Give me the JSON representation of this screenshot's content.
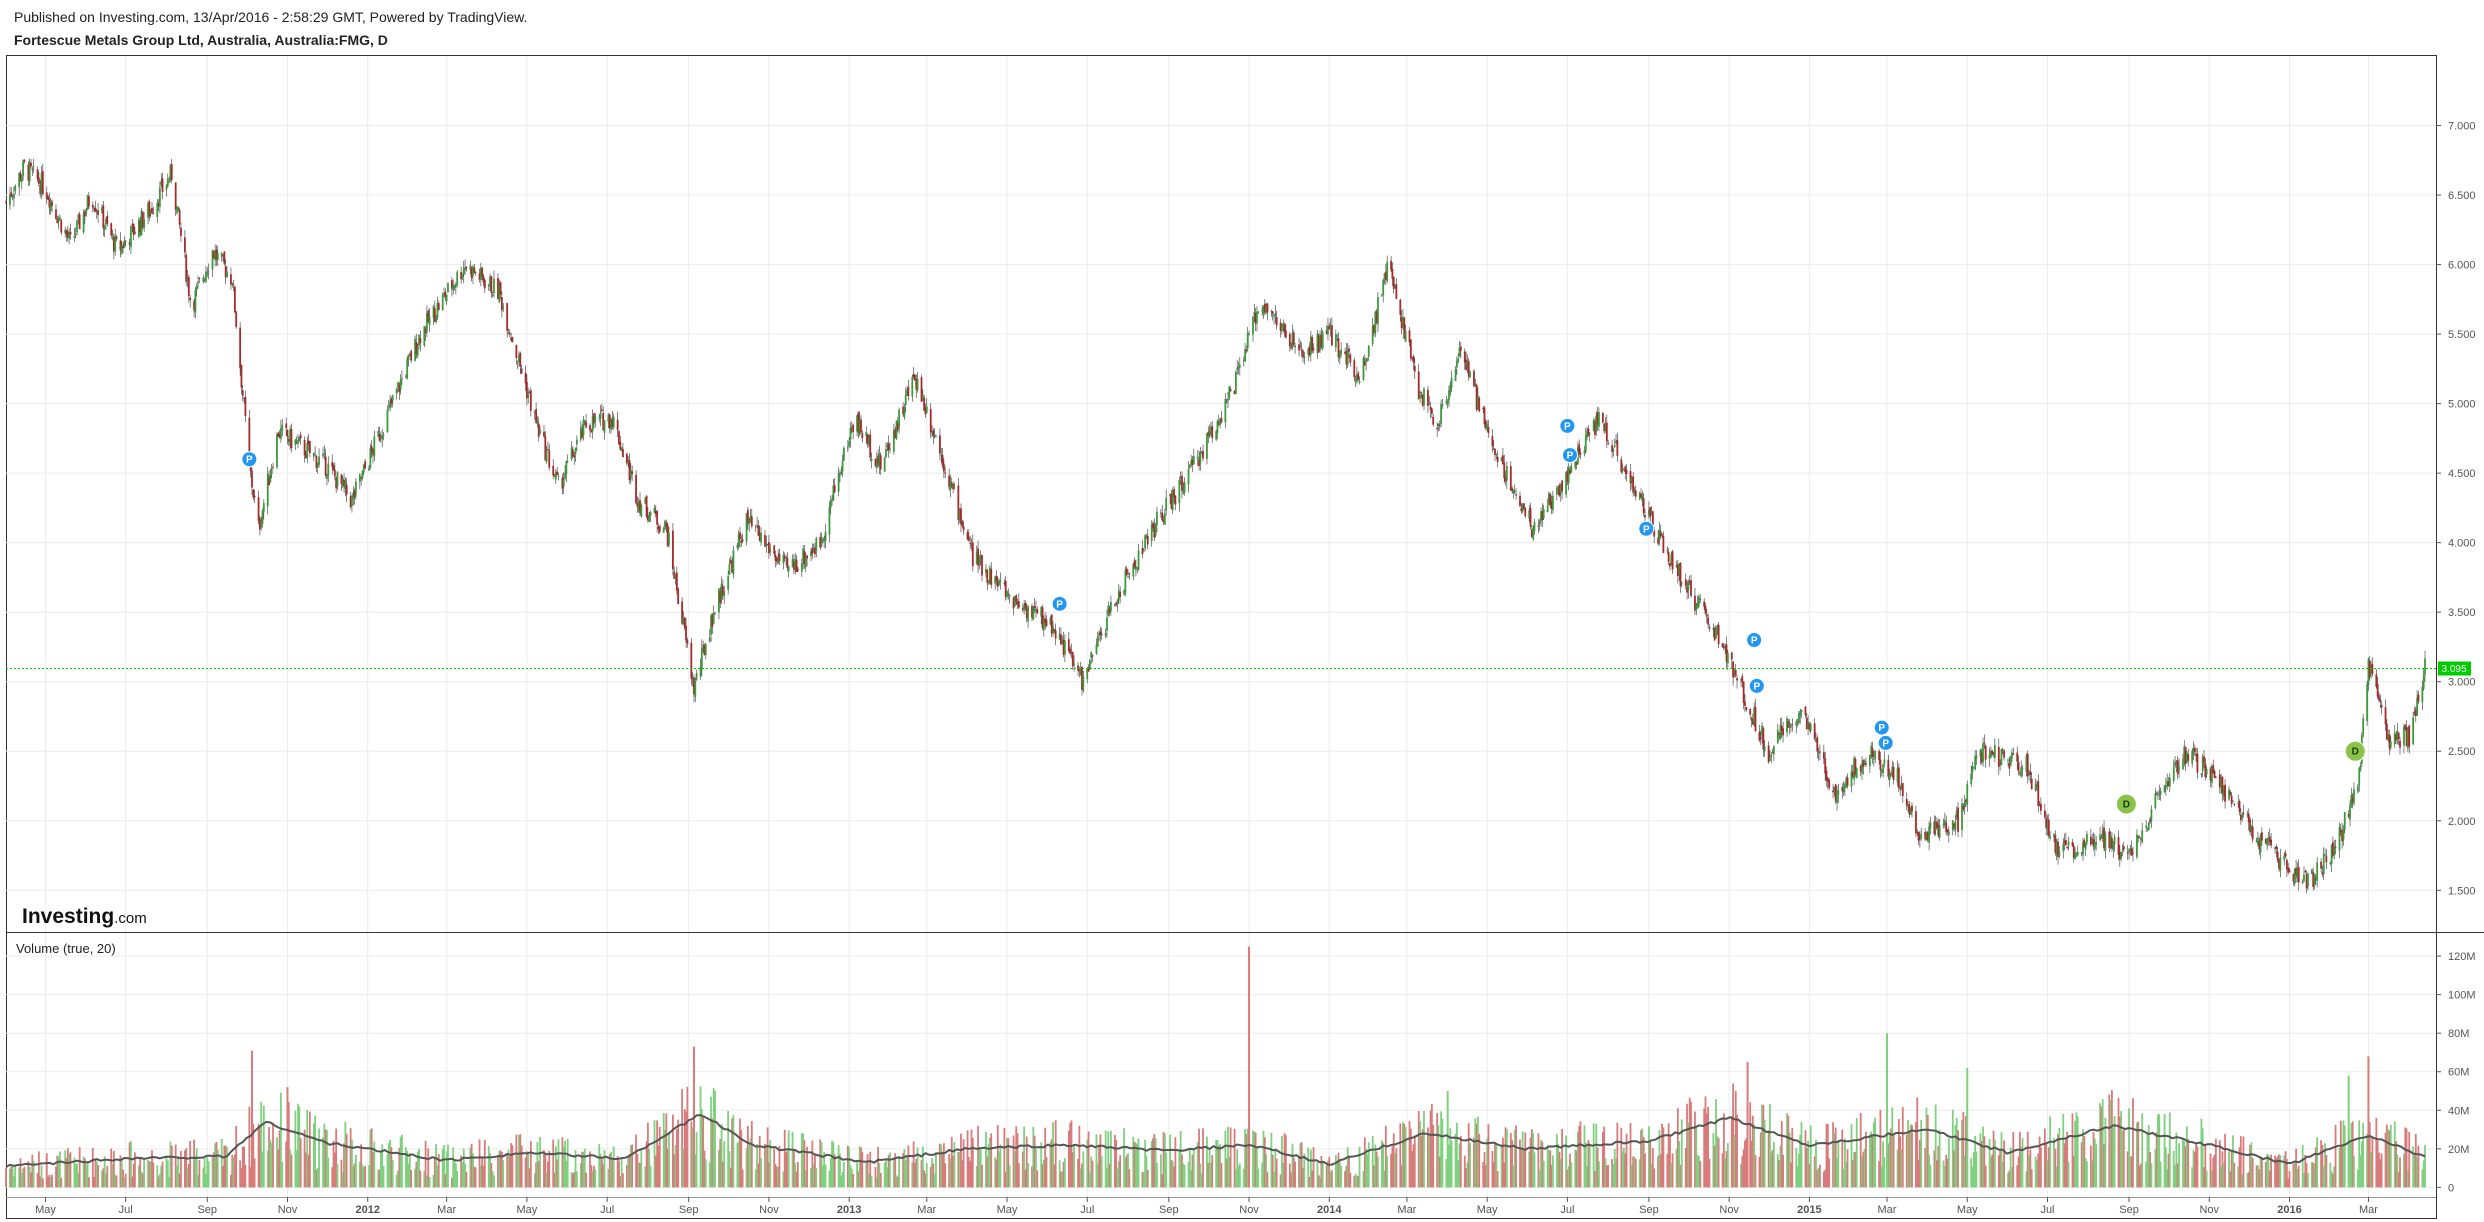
{
  "header": {
    "published": "Published on Investing.com, 13/Apr/2016 - 2:58:29 GMT, Powered by TradingView.",
    "symbol": "Fortescue Metals Group Ltd, Australia, Australia:FMG, D"
  },
  "branding": {
    "logo_main": "Investing",
    "logo_suffix": ".com"
  },
  "colors": {
    "up": "#3c9a3c",
    "down": "#a52a2a",
    "vol_up": "#7fd07f",
    "vol_down": "#d97b7b",
    "ma_line": "#555555",
    "last_price": "#00cc00",
    "split_badge": "#2196f3",
    "dividend_badge": "#8bc34a"
  },
  "chart_data": {
    "type": "candlestick",
    "symbol": "Australia:FMG",
    "interval": "D",
    "price_axis": {
      "ylim": [
        1.2,
        7.5
      ],
      "ticks": [
        "7.000",
        "6.500",
        "6.000",
        "5.500",
        "5.000",
        "4.500",
        "4.000",
        "3.500",
        "3.000",
        "2.500",
        "2.000",
        "1.500"
      ],
      "tick_values": [
        7.0,
        6.5,
        6.0,
        5.5,
        5.0,
        4.5,
        4.0,
        3.5,
        3.0,
        2.5,
        2.0,
        1.5
      ]
    },
    "volume_axis": {
      "ylim": [
        -5,
        132
      ],
      "ticks": [
        "120M",
        "100M",
        "80M",
        "60M",
        "40M",
        "20M",
        "0"
      ],
      "tick_values": [
        120,
        100,
        80,
        60,
        40,
        20,
        0
      ]
    },
    "x_range": [
      "2011-04-01",
      "2016-04-13"
    ],
    "x_ticks": [
      {
        "label": "May",
        "date": "2011-05-01"
      },
      {
        "label": "Jul",
        "date": "2011-07-01"
      },
      {
        "label": "Sep",
        "date": "2011-09-01"
      },
      {
        "label": "Nov",
        "date": "2011-11-01"
      },
      {
        "label": "2012",
        "date": "2012-01-01"
      },
      {
        "label": "Mar",
        "date": "2012-03-01"
      },
      {
        "label": "May",
        "date": "2012-05-01"
      },
      {
        "label": "Jul",
        "date": "2012-07-01"
      },
      {
        "label": "Sep",
        "date": "2012-09-01"
      },
      {
        "label": "Nov",
        "date": "2012-11-01"
      },
      {
        "label": "2013",
        "date": "2013-01-01"
      },
      {
        "label": "Mar",
        "date": "2013-03-01"
      },
      {
        "label": "May",
        "date": "2013-05-01"
      },
      {
        "label": "Jul",
        "date": "2013-07-01"
      },
      {
        "label": "Sep",
        "date": "2013-09-01"
      },
      {
        "label": "Nov",
        "date": "2013-11-01"
      },
      {
        "label": "2014",
        "date": "2014-01-01"
      },
      {
        "label": "Mar",
        "date": "2014-03-01"
      },
      {
        "label": "May",
        "date": "2014-05-01"
      },
      {
        "label": "Jul",
        "date": "2014-07-01"
      },
      {
        "label": "Sep",
        "date": "2014-09-01"
      },
      {
        "label": "Nov",
        "date": "2014-11-01"
      },
      {
        "label": "2015",
        "date": "2015-01-01"
      },
      {
        "label": "Mar",
        "date": "2015-03-01"
      },
      {
        "label": "May",
        "date": "2015-05-01"
      },
      {
        "label": "Jul",
        "date": "2015-07-01"
      },
      {
        "label": "Sep",
        "date": "2015-09-01"
      },
      {
        "label": "Nov",
        "date": "2015-11-01"
      },
      {
        "label": "2016",
        "date": "2016-01-01"
      },
      {
        "label": "Mar",
        "date": "2016-03-01"
      }
    ],
    "price_path": [
      {
        "date": "2011-04-01",
        "close": 6.45
      },
      {
        "date": "2011-04-15",
        "close": 6.7
      },
      {
        "date": "2011-05-01",
        "close": 6.55
      },
      {
        "date": "2011-05-20",
        "close": 6.15
      },
      {
        "date": "2011-06-05",
        "close": 6.5
      },
      {
        "date": "2011-06-25",
        "close": 6.1
      },
      {
        "date": "2011-07-20",
        "close": 6.4
      },
      {
        "date": "2011-08-05",
        "close": 6.65
      },
      {
        "date": "2011-08-20",
        "close": 5.7
      },
      {
        "date": "2011-09-05",
        "close": 6.1
      },
      {
        "date": "2011-09-20",
        "close": 5.9
      },
      {
        "date": "2011-10-03",
        "close": 4.55
      },
      {
        "date": "2011-10-10",
        "close": 4.1
      },
      {
        "date": "2011-10-25",
        "close": 4.8
      },
      {
        "date": "2011-11-10",
        "close": 4.7
      },
      {
        "date": "2011-12-01",
        "close": 4.55
      },
      {
        "date": "2011-12-20",
        "close": 4.3
      },
      {
        "date": "2012-01-15",
        "close": 4.9
      },
      {
        "date": "2012-02-10",
        "close": 5.5
      },
      {
        "date": "2012-03-15",
        "close": 6.0
      },
      {
        "date": "2012-04-10",
        "close": 5.8
      },
      {
        "date": "2012-04-25",
        "close": 5.3
      },
      {
        "date": "2012-05-10",
        "close": 4.8
      },
      {
        "date": "2012-05-25",
        "close": 4.4
      },
      {
        "date": "2012-06-15",
        "close": 4.85
      },
      {
        "date": "2012-07-05",
        "close": 4.9
      },
      {
        "date": "2012-07-25",
        "close": 4.3
      },
      {
        "date": "2012-08-15",
        "close": 4.1
      },
      {
        "date": "2012-08-28",
        "close": 3.4
      },
      {
        "date": "2012-09-05",
        "close": 2.95
      },
      {
        "date": "2012-09-20",
        "close": 3.5
      },
      {
        "date": "2012-10-15",
        "close": 4.15
      },
      {
        "date": "2012-11-15",
        "close": 3.8
      },
      {
        "date": "2012-12-10",
        "close": 4.0
      },
      {
        "date": "2013-01-05",
        "close": 4.9
      },
      {
        "date": "2013-01-25",
        "close": 4.55
      },
      {
        "date": "2013-02-20",
        "close": 5.2
      },
      {
        "date": "2013-03-10",
        "close": 4.7
      },
      {
        "date": "2013-04-05",
        "close": 3.9
      },
      {
        "date": "2013-05-05",
        "close": 3.6
      },
      {
        "date": "2013-06-05",
        "close": 3.4
      },
      {
        "date": "2013-06-28",
        "close": 3.0
      },
      {
        "date": "2013-07-20",
        "close": 3.55
      },
      {
        "date": "2013-08-20",
        "close": 4.1
      },
      {
        "date": "2013-09-20",
        "close": 4.55
      },
      {
        "date": "2013-10-20",
        "close": 5.1
      },
      {
        "date": "2013-11-10",
        "close": 5.75
      },
      {
        "date": "2013-12-10",
        "close": 5.35
      },
      {
        "date": "2014-01-01",
        "close": 5.5
      },
      {
        "date": "2014-01-25",
        "close": 5.2
      },
      {
        "date": "2014-02-15",
        "close": 6.0
      },
      {
        "date": "2014-03-10",
        "close": 5.1
      },
      {
        "date": "2014-03-25",
        "close": 4.85
      },
      {
        "date": "2014-04-10",
        "close": 5.4
      },
      {
        "date": "2014-05-05",
        "close": 4.7
      },
      {
        "date": "2014-06-05",
        "close": 4.1
      },
      {
        "date": "2014-07-05",
        "close": 4.55
      },
      {
        "date": "2014-07-25",
        "close": 4.9
      },
      {
        "date": "2014-08-15",
        "close": 4.5
      },
      {
        "date": "2014-09-10",
        "close": 4.0
      },
      {
        "date": "2014-10-05",
        "close": 3.6
      },
      {
        "date": "2014-10-25",
        "close": 3.3
      },
      {
        "date": "2014-11-10",
        "close": 2.95
      },
      {
        "date": "2014-12-01",
        "close": 2.5
      },
      {
        "date": "2014-12-25",
        "close": 2.8
      },
      {
        "date": "2015-01-20",
        "close": 2.2
      },
      {
        "date": "2015-02-15",
        "close": 2.5
      },
      {
        "date": "2015-03-10",
        "close": 2.3
      },
      {
        "date": "2015-03-25",
        "close": 1.9
      },
      {
        "date": "2015-04-25",
        "close": 2.0
      },
      {
        "date": "2015-05-10",
        "close": 2.5
      },
      {
        "date": "2015-06-15",
        "close": 2.4
      },
      {
        "date": "2015-07-10",
        "close": 1.75
      },
      {
        "date": "2015-08-10",
        "close": 1.9
      },
      {
        "date": "2015-08-30",
        "close": 1.75
      },
      {
        "date": "2015-09-20",
        "close": 2.1
      },
      {
        "date": "2015-10-15",
        "close": 2.5
      },
      {
        "date": "2015-11-10",
        "close": 2.25
      },
      {
        "date": "2015-12-10",
        "close": 1.85
      },
      {
        "date": "2016-01-15",
        "close": 1.55
      },
      {
        "date": "2016-02-05",
        "close": 1.8
      },
      {
        "date": "2016-02-22",
        "close": 2.25
      },
      {
        "date": "2016-03-01",
        "close": 3.1
      },
      {
        "date": "2016-03-15",
        "close": 2.6
      },
      {
        "date": "2016-04-01",
        "close": 2.6
      },
      {
        "date": "2016-04-13",
        "close": 3.1
      }
    ],
    "volume_series": {
      "name": "Volume (true, 20)",
      "ma_path": [
        {
          "date": "2011-04-01",
          "value": 11
        },
        {
          "date": "2011-07-01",
          "value": 15
        },
        {
          "date": "2011-09-15",
          "value": 16
        },
        {
          "date": "2011-10-15",
          "value": 34
        },
        {
          "date": "2011-12-01",
          "value": 23
        },
        {
          "date": "2012-03-01",
          "value": 14
        },
        {
          "date": "2012-05-01",
          "value": 18
        },
        {
          "date": "2012-07-15",
          "value": 15
        },
        {
          "date": "2012-09-10",
          "value": 38
        },
        {
          "date": "2012-10-20",
          "value": 22
        },
        {
          "date": "2013-01-15",
          "value": 13
        },
        {
          "date": "2013-04-01",
          "value": 20
        },
        {
          "date": "2013-06-15",
          "value": 22
        },
        {
          "date": "2013-09-01",
          "value": 19
        },
        {
          "date": "2013-11-01",
          "value": 22
        },
        {
          "date": "2014-01-01",
          "value": 12
        },
        {
          "date": "2014-03-15",
          "value": 28
        },
        {
          "date": "2014-06-01",
          "value": 20
        },
        {
          "date": "2014-09-01",
          "value": 24
        },
        {
          "date": "2014-11-01",
          "value": 36
        },
        {
          "date": "2015-01-01",
          "value": 22
        },
        {
          "date": "2015-04-01",
          "value": 30
        },
        {
          "date": "2015-06-01",
          "value": 18
        },
        {
          "date": "2015-08-20",
          "value": 32
        },
        {
          "date": "2015-11-01",
          "value": 22
        },
        {
          "date": "2016-01-01",
          "value": 12
        },
        {
          "date": "2016-03-01",
          "value": 27
        },
        {
          "date": "2016-04-13",
          "value": 16
        }
      ],
      "spikes": [
        {
          "date": "2013-11-01",
          "value": 125,
          "direction": "down"
        },
        {
          "date": "2012-09-05",
          "value": 73,
          "direction": "down"
        },
        {
          "date": "2011-10-05",
          "value": 71,
          "direction": "down"
        },
        {
          "date": "2015-03-01",
          "value": 80,
          "direction": "up"
        },
        {
          "date": "2016-03-01",
          "value": 68,
          "direction": "down"
        },
        {
          "date": "2014-11-15",
          "value": 65,
          "direction": "down"
        },
        {
          "date": "2015-05-01",
          "value": 62,
          "direction": "up"
        },
        {
          "date": "2016-02-15",
          "value": 58,
          "direction": "up"
        },
        {
          "date": "2011-11-01",
          "value": 52,
          "direction": "down"
        },
        {
          "date": "2014-04-01",
          "value": 50,
          "direction": "up"
        }
      ]
    },
    "events": [
      {
        "type": "split",
        "label": "P",
        "date": "2011-10-03",
        "price": 4.6
      },
      {
        "type": "split",
        "label": "P",
        "date": "2013-06-10",
        "price": 3.56
      },
      {
        "type": "split",
        "label": "P",
        "date": "2014-07-01",
        "price": 4.84
      },
      {
        "type": "split",
        "label": "P",
        "date": "2014-07-03",
        "price": 4.63
      },
      {
        "type": "split",
        "label": "P",
        "date": "2014-08-30",
        "price": 4.1
      },
      {
        "type": "split",
        "label": "P",
        "date": "2014-11-20",
        "price": 3.3
      },
      {
        "type": "split",
        "label": "P",
        "date": "2014-11-22",
        "price": 2.97
      },
      {
        "type": "split",
        "label": "P",
        "date": "2015-02-25",
        "price": 2.67
      },
      {
        "type": "split",
        "label": "P",
        "date": "2015-02-28",
        "price": 2.56
      },
      {
        "type": "dividend",
        "label": "D",
        "date": "2015-08-30",
        "price": 2.12
      },
      {
        "type": "dividend",
        "label": "D",
        "date": "2016-02-20",
        "price": 2.5
      }
    ],
    "last_price": {
      "value": 3.095,
      "label": "3.095"
    }
  }
}
